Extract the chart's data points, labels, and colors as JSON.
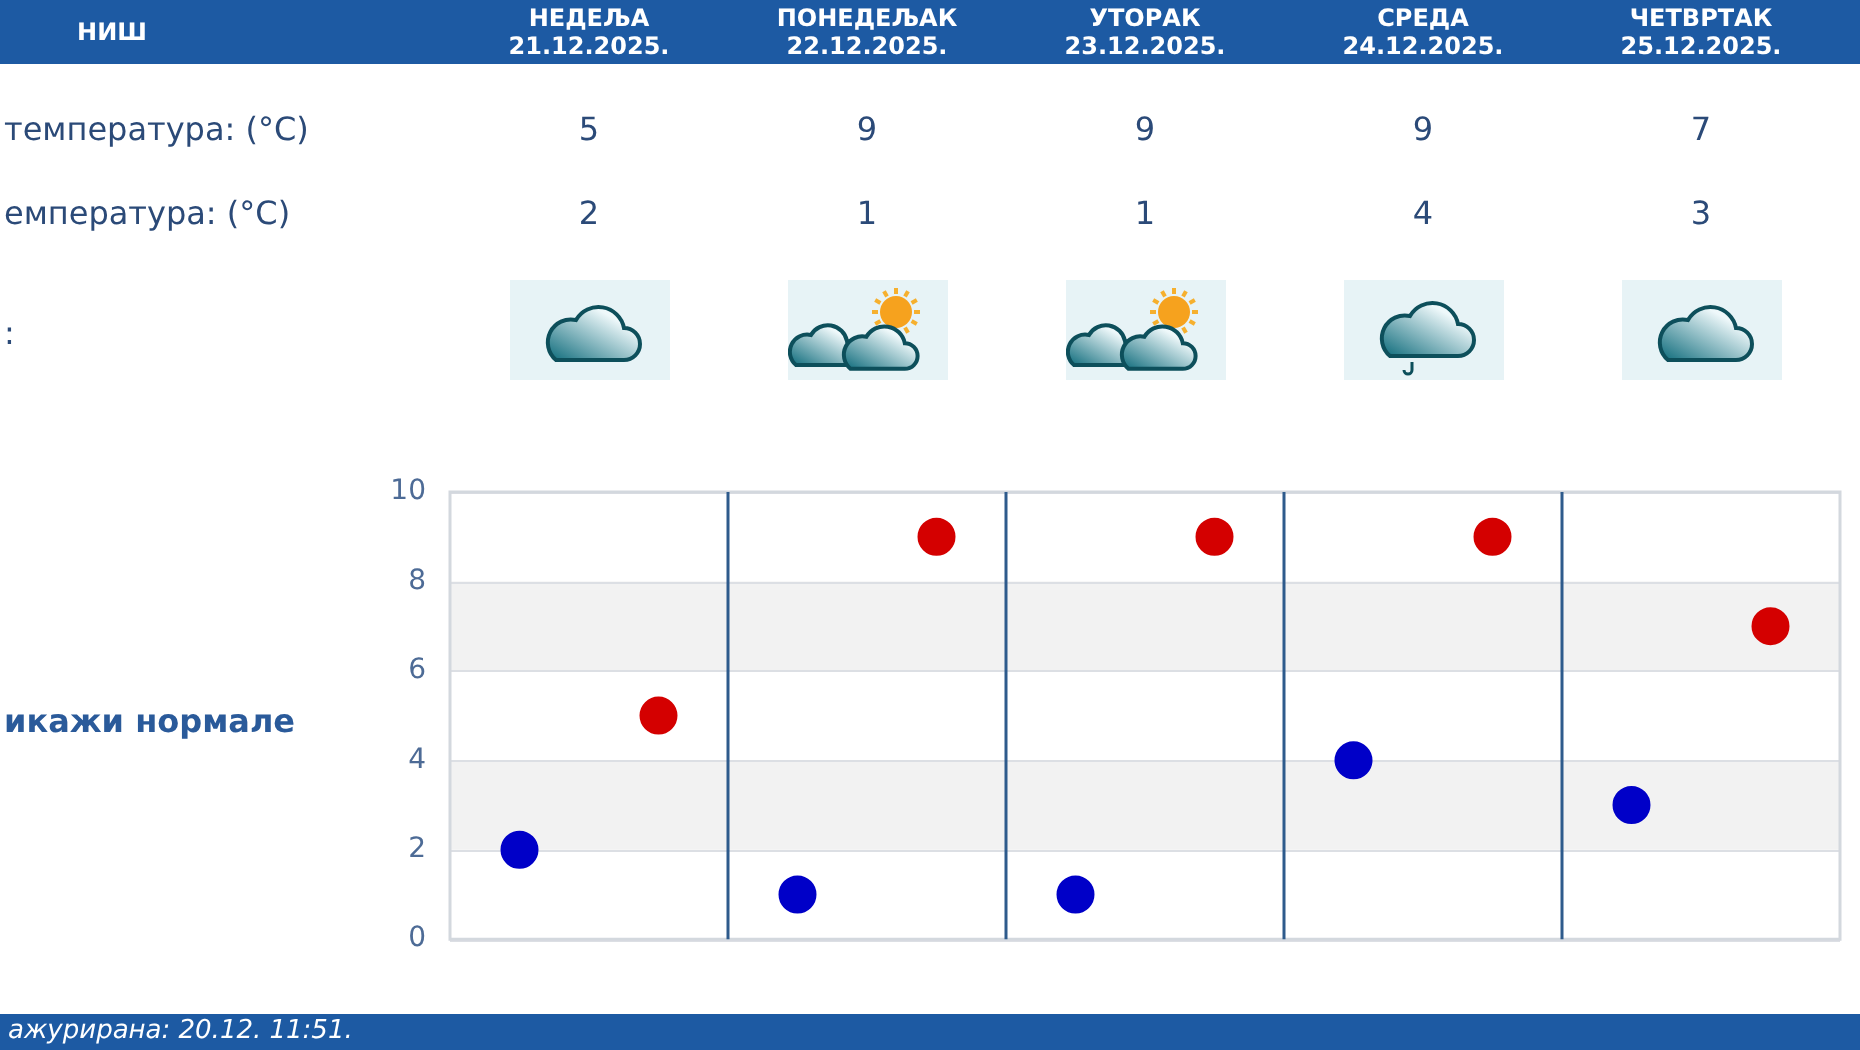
{
  "chart_data": {
    "type": "scatter",
    "title": "НИШ",
    "categories": [
      null,
      null,
      null,
      null,
      null
    ],
    "series": [
      {
        "color": "#d40000",
        "values": [
          5,
          9,
          9,
          9,
          7
        ]
      },
      {
        "color": "#0000c8",
        "values": [
          2,
          1,
          1,
          4,
          3
        ]
      }
    ],
    "ylim": [
      0,
      10
    ],
    "yticks": [
      0,
      2,
      4,
      6,
      8,
      10
    ],
    "grid": true,
    "marker": "circle",
    "data_labels": true,
    "tick_labels": "y",
    "bands": [
      {
        "axis": "y",
        "from": 2,
        "to": 4,
        "color": "#f2f2f2"
      },
      {
        "axis": "y",
        "from": 6,
        "to": 8,
        "color": "#f2f2f2"
      }
    ],
    "annotations": [
      "НЕДЕЉА\n21.12.2025.",
      "ПОНЕДЕЉАК\n22.12.2025.",
      "УТОРАК\n23.12.2025.",
      "СРЕДА\n24.12.2025.",
      "ЧЕТВРТАК\n25.12.2025.",
      "температура: (°C)",
      "емпература: (°C)",
      ":",
      "икажи нормале",
      "ажурирана: 20.12. 11:51."
    ]
  }
}
